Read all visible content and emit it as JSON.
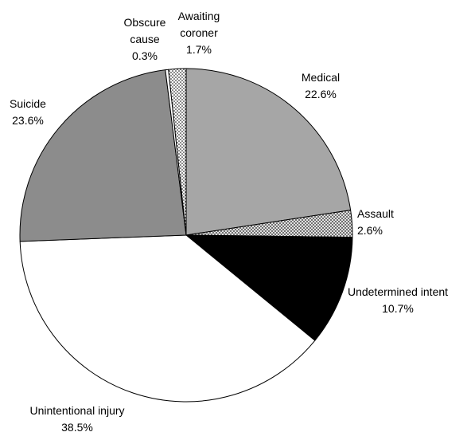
{
  "chart_data": {
    "type": "pie",
    "categories": [
      "Medical",
      "Assault",
      "Undetermined intent",
      "Unintentional injury",
      "Suicide",
      "Obscure cause",
      "Awaiting coroner"
    ],
    "values": [
      22.6,
      2.6,
      10.7,
      38.5,
      23.6,
      0.3,
      1.7
    ],
    "value_labels": [
      "22.6%",
      "2.6%",
      "10.7%",
      "38.5%",
      "23.6%",
      "0.3%",
      "1.7%"
    ],
    "colors": [
      "#a6a6a6",
      "#ffffff",
      "#000000",
      "#ffffff",
      "#8c8c8c",
      "#ffffff",
      "#ffffff"
    ],
    "patterns": [
      null,
      "crosshatch",
      null,
      null,
      null,
      null,
      "dots"
    ]
  }
}
